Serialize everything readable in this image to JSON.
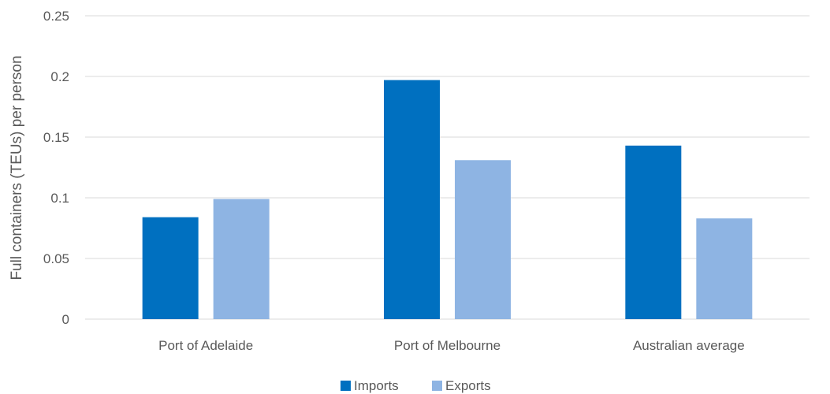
{
  "chart_data": {
    "type": "bar",
    "categories": [
      "Port of Adelaide",
      "Port of Melbourne",
      "Australian average"
    ],
    "series": [
      {
        "name": "Imports",
        "color": "#0070c0",
        "values": [
          0.084,
          0.197,
          0.143
        ]
      },
      {
        "name": "Exports",
        "color": "#8eb4e3",
        "values": [
          0.099,
          0.131,
          0.083
        ]
      }
    ],
    "yticks": [
      "0",
      "0.05",
      "0.1",
      "0.15",
      "0.2",
      "0.25"
    ],
    "ylabel": "Full containers (TEUs) per person",
    "xlabel": "",
    "title": "",
    "ylim": [
      0,
      0.25
    ],
    "grid": true,
    "legend_position": "bottom"
  }
}
